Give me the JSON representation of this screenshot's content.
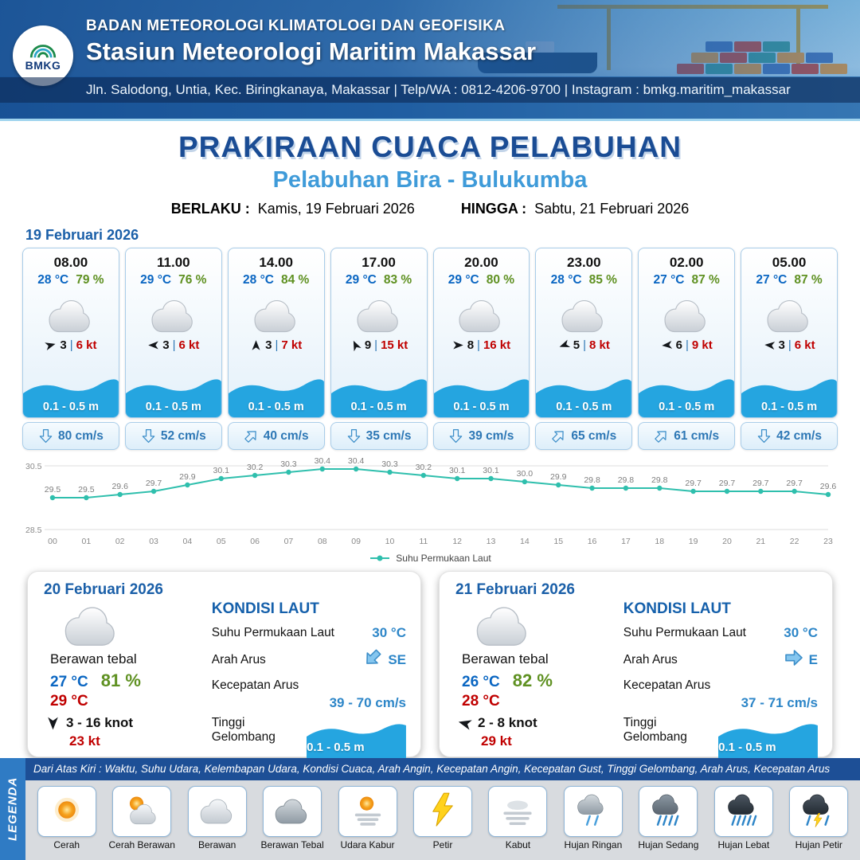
{
  "colors": {
    "header_blue": "#1a589e",
    "accent_blue": "#1a5fa8",
    "subtitle_blue": "#3f9bd9",
    "temp_blue": "#0a66c2",
    "humidity_green": "#5f9122",
    "gust_red": "#c00000",
    "wave_blue": "#25a5e0",
    "current_text_blue": "#2d77b5",
    "chart_teal": "#2fbfad"
  },
  "header": {
    "logo_text": "BMKG",
    "agency": "BADAN METEOROLOGI KLIMATOLOGI DAN GEOFISIKA",
    "station": "Stasiun Meteorologi Maritim Makassar",
    "address": "Jln. Salodong, Untia, Kec. Biringkanaya, Makassar | Telp/WA : 0812-4206-9700 | Instagram : bmkg.maritim_makassar"
  },
  "title": {
    "main": "PRAKIRAAN CUACA PELABUHAN",
    "subtitle": "Pelabuhan Bira - Bulukumba",
    "valid_label": "BERLAKU :",
    "valid_value": "Kamis, 19 Februari 2026",
    "until_label": "HINGGA :",
    "until_value": "Sabtu, 21 Februari 2026"
  },
  "forecast_day": {
    "date": "19 Februari 2026",
    "cards": [
      {
        "time": "08.00",
        "temp": "28 °C",
        "humidity": "79 %",
        "wind_speed": "3",
        "gust": "6 kt",
        "wind_deg": -15,
        "wave": "0.1 - 0.5 m",
        "current": "80 cm/s",
        "current_deg": 180
      },
      {
        "time": "11.00",
        "temp": "29 °C",
        "humidity": "76 %",
        "wind_speed": "3",
        "gust": "6 kt",
        "wind_deg": 180,
        "wave": "0.1 - 0.5 m",
        "current": "52 cm/s",
        "current_deg": 180
      },
      {
        "time": "14.00",
        "temp": "28 °C",
        "humidity": "84 %",
        "wind_speed": "3",
        "gust": "7 kt",
        "wind_deg": -90,
        "wave": "0.1 - 0.5 m",
        "current": "40 cm/s",
        "current_deg": 45
      },
      {
        "time": "17.00",
        "temp": "29 °C",
        "humidity": "83 %",
        "wind_speed": "9",
        "gust": "15 kt",
        "wind_deg": -115,
        "wave": "0.1 - 0.5 m",
        "current": "35 cm/s",
        "current_deg": 180
      },
      {
        "time": "20.00",
        "temp": "29 °C",
        "humidity": "80 %",
        "wind_speed": "8",
        "gust": "16 kt",
        "wind_deg": 0,
        "wave": "0.1 - 0.5 m",
        "current": "39 cm/s",
        "current_deg": 180
      },
      {
        "time": "23.00",
        "temp": "28 °C",
        "humidity": "85 %",
        "wind_speed": "5",
        "gust": "8 kt",
        "wind_deg": 160,
        "wave": "0.1 - 0.5 m",
        "current": "65 cm/s",
        "current_deg": 45
      },
      {
        "time": "02.00",
        "temp": "27 °C",
        "humidity": "87 %",
        "wind_speed": "6",
        "gust": "9 kt",
        "wind_deg": 175,
        "wave": "0.1 - 0.5 m",
        "current": "61 cm/s",
        "current_deg": 45
      },
      {
        "time": "05.00",
        "temp": "27 °C",
        "humidity": "87 %",
        "wind_speed": "3",
        "gust": "6 kt",
        "wind_deg": 185,
        "wave": "0.1 - 0.5 m",
        "current": "42 cm/s",
        "current_deg": 180
      }
    ]
  },
  "chart_data": {
    "type": "line",
    "series_name": "Suhu Permukaan Laut",
    "x": [
      "00",
      "01",
      "02",
      "03",
      "04",
      "05",
      "06",
      "07",
      "08",
      "09",
      "10",
      "11",
      "12",
      "13",
      "14",
      "15",
      "16",
      "17",
      "18",
      "19",
      "20",
      "21",
      "22",
      "23"
    ],
    "values": [
      29.5,
      29.5,
      29.6,
      29.7,
      29.9,
      30.1,
      30.2,
      30.3,
      30.4,
      30.4,
      30.3,
      30.2,
      30.1,
      30.1,
      30.0,
      29.9,
      29.8,
      29.8,
      29.8,
      29.7,
      29.7,
      29.7,
      29.7,
      29.6
    ],
    "title": "",
    "xlabel": "",
    "ylabel": "",
    "ylim": [
      28.5,
      30.5
    ],
    "line_color": "#2fbfad",
    "legend_position": "bottom",
    "grid": true
  },
  "day_cards": [
    {
      "date": "20 Februari 2026",
      "condition": "Berawan tebal",
      "temp": "27 °C",
      "humidity": "81 %",
      "temp_max": "29 °C",
      "wind_range": "3 - 16 knot",
      "gust": "23 kt",
      "wind_deg": 90,
      "sea": {
        "title": "KONDISI LAUT",
        "sst_label": "Suhu Permukaan Laut",
        "sst": "30 °C",
        "dir_label": "Arah Arus",
        "dir": "SE",
        "dir_deg": 225,
        "speed_label": "Kecepatan Arus",
        "speed": "39 - 70 cm/s",
        "wave_label": "Tinggi Gelombang",
        "wave": "0.1 - 0.5 m"
      }
    },
    {
      "date": "21 Februari 2026",
      "condition": "Berawan tebal",
      "temp": "26 °C",
      "humidity": "82 %",
      "temp_max": "28 °C",
      "wind_range": "2 - 8 knot",
      "gust": "29 kt",
      "wind_deg": 195,
      "sea": {
        "title": "KONDISI LAUT",
        "sst_label": "Suhu Permukaan Laut",
        "sst": "30 °C",
        "dir_label": "Arah Arus",
        "dir": "E",
        "dir_deg": 90,
        "speed_label": "Kecepatan Arus",
        "speed": "37 - 71 cm/s",
        "wave_label": "Tinggi Gelombang",
        "wave": "0.1 - 0.5 m"
      }
    }
  ],
  "legend": {
    "vertical_label": "LEGENDA",
    "description": "Dari Atas Kiri : Waktu, Suhu Udara, Kelembapan Udara, Kondisi Cuaca, Arah Angin, Kecepatan Angin, Kecepatan Gust, Tinggi Gelombang, Arah Arus, Kecepatan Arus",
    "items": [
      {
        "label": "Cerah",
        "icon": "sun"
      },
      {
        "label": "Cerah Berawan",
        "icon": "sun-cloud"
      },
      {
        "label": "Berawan",
        "icon": "cloud"
      },
      {
        "label": "Berawan Tebal",
        "icon": "cloud-thick"
      },
      {
        "label": "Udara Kabur",
        "icon": "haze"
      },
      {
        "label": "Petir",
        "icon": "lightning"
      },
      {
        "label": "Kabut",
        "icon": "fog"
      },
      {
        "label": "Hujan Ringan",
        "icon": "rain-light"
      },
      {
        "label": "Hujan Sedang",
        "icon": "rain-medium"
      },
      {
        "label": "Hujan Lebat",
        "icon": "rain-heavy"
      },
      {
        "label": "Hujan Petir",
        "icon": "rain-thunder"
      }
    ]
  }
}
